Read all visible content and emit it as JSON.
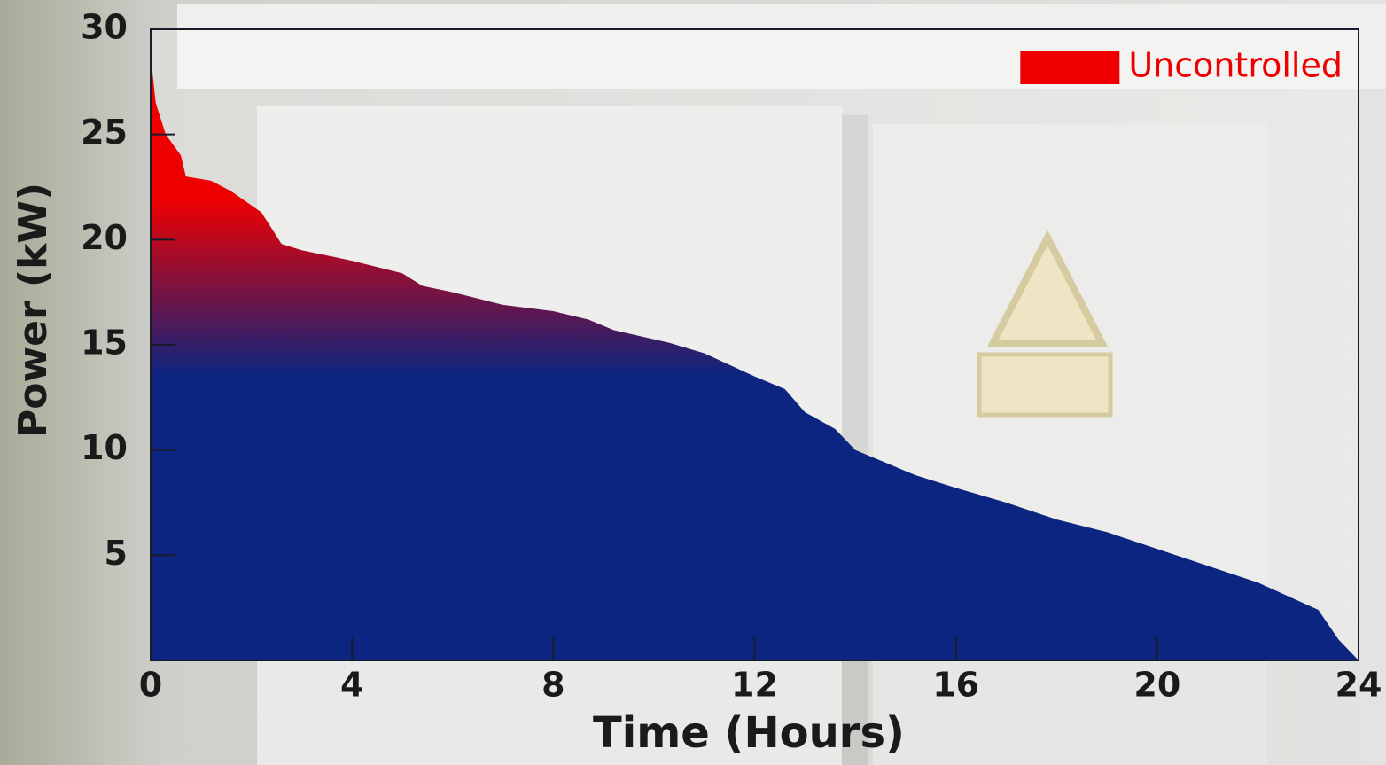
{
  "chart_data": {
    "type": "area",
    "x": [
      0,
      0.1,
      0.3,
      0.6,
      0.7,
      1.2,
      1.6,
      2.2,
      2.6,
      3,
      4,
      5,
      5.4,
      6,
      7,
      8,
      8.7,
      9.2,
      10.3,
      11,
      12,
      12.6,
      13,
      13.6,
      14,
      14.6,
      15.2,
      16,
      17,
      18,
      19,
      20,
      21,
      22,
      23.2,
      23.6,
      24
    ],
    "series": [
      {
        "name": "Uncontrolled",
        "color": "#0b2580",
        "top_color": "#ee0000",
        "values": [
          28.8,
          26.5,
          25,
          24,
          23,
          22.8,
          22.3,
          21.3,
          19.8,
          19.5,
          19,
          18.4,
          17.8,
          17.5,
          16.9,
          16.6,
          16.2,
          15.7,
          15.1,
          14.6,
          13.5,
          12.9,
          11.8,
          11,
          10,
          9.4,
          8.8,
          8.2,
          7.5,
          6.7,
          6.1,
          5.3,
          4.5,
          3.7,
          2.4,
          1,
          0
        ]
      }
    ],
    "xlabel": "Time (Hours)",
    "ylabel": "Power (kW)",
    "xlim": [
      0,
      24
    ],
    "xticks": [
      0,
      4,
      8,
      12,
      16,
      20,
      24
    ],
    "ylim": [
      0,
      30
    ],
    "yticks": [
      5,
      10,
      15,
      20,
      25,
      30
    ],
    "legend": "upper right",
    "legend_color": "#ee0000"
  }
}
